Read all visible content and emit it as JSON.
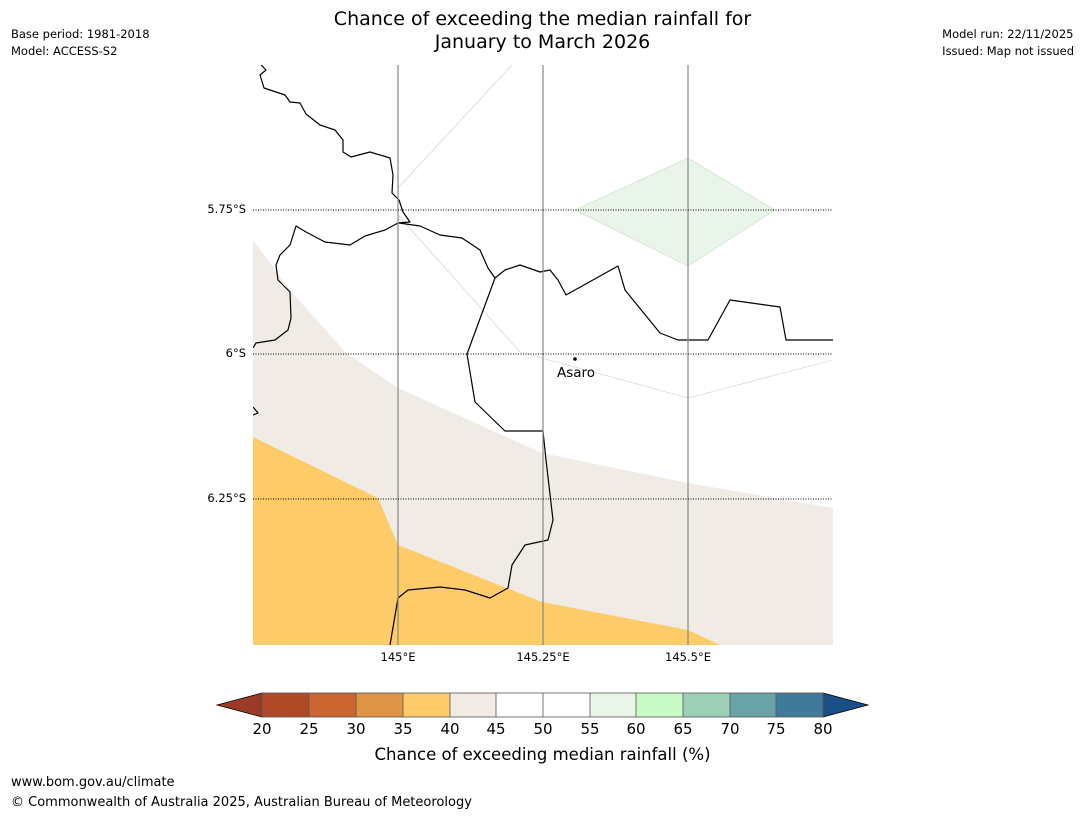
{
  "header": {
    "title_line1": "Chance of exceeding the median rainfall for",
    "title_line2": "January to March 2026",
    "base_period": "Base period: 1981-2018",
    "model": "Model: ACCESS-S2",
    "model_run": "Model run: 22/11/2025",
    "issued": "Issued: Map not issued"
  },
  "map": {
    "lat_labels": [
      "5.75°S",
      "6°S",
      "6.25°S"
    ],
    "lon_labels": [
      "145°E",
      "145.25°E",
      "145.5°E"
    ],
    "place": "Asaro",
    "region_colors": {
      "c35_40": "#fdcb67",
      "c40_45": "#f0ebe5",
      "c55_60": "#e8f5e8"
    }
  },
  "colorbar": {
    "ticks": [
      "20",
      "25",
      "30",
      "35",
      "40",
      "45",
      "50",
      "55",
      "60",
      "65",
      "70",
      "75",
      "80"
    ],
    "colors": [
      "#9b3a25",
      "#b04a26",
      "#cc6530",
      "#e09445",
      "#fdcb67",
      "#f0ebe5",
      "#ffffff",
      "#ffffff",
      "#e8f5e8",
      "#c7fac5",
      "#9ccfb7",
      "#6aa3a5",
      "#3f7a9a",
      "#194e86"
    ],
    "label": "Chance of exceeding median rainfall (%)"
  },
  "footer": {
    "url": "www.bom.gov.au/climate",
    "copyright": "© Commonwealth of Australia 2025, Australian Bureau of Meteorology"
  }
}
